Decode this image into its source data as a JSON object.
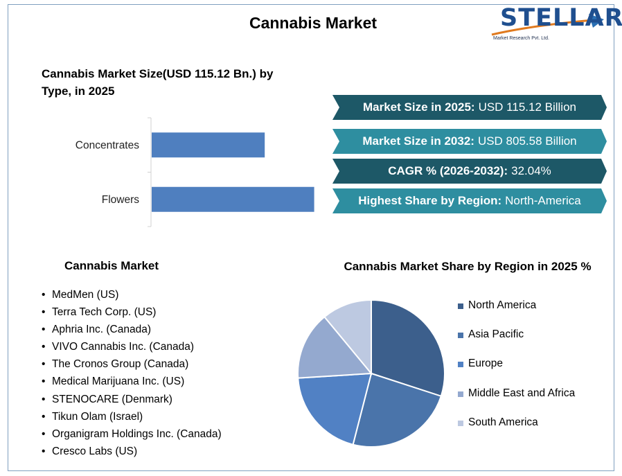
{
  "title": "Cannabis Market",
  "logo": {
    "name": "STELLAR",
    "tagline": "Market Research Pvt. Ltd."
  },
  "bar_section": {
    "title": "Cannabis Market Size(USD 115.12 Bn.) by Type, in 2025"
  },
  "banners": [
    {
      "label": "Market Size in 2025:",
      "value": "USD 115.12 Billion"
    },
    {
      "label": "Market Size in 2032:",
      "value": "USD 805.58 Billion"
    },
    {
      "label": "CAGR % (2026-2032):",
      "value": "32.04%"
    },
    {
      "label": "Highest Share by Region:",
      "value": "North-America"
    }
  ],
  "companies": {
    "title": "Cannabis Market",
    "items": [
      "MedMen (US)",
      "Terra Tech Corp. (US)",
      "Aphria Inc. (Canada)",
      "VIVO Cannabis Inc. (Canada)",
      "The Cronos Group (Canada)",
      "Medical Marijuana Inc. (US)",
      "STENOCARE (Denmark)",
      "Tikun Olam (Israel)",
      "Organigram Holdings Inc. (Canada)",
      "Cresco Labs (US)"
    ]
  },
  "colors": {
    "bar": "#4f7fbf",
    "banner_dark": "#1d5867",
    "banner_light": "#2e8ea0",
    "pie": [
      "#3c5f8c",
      "#4a74aa",
      "#5181c4",
      "#94a9cf",
      "#bdc9e1"
    ]
  },
  "chart_data": [
    {
      "type": "bar",
      "orientation": "horizontal",
      "title": "Cannabis Market Size(USD 115.12 Bn.) by Type, in 2025",
      "categories": [
        "Concentrates",
        "Flowers"
      ],
      "values": [
        48,
        69
      ],
      "xlim": [
        0,
        70
      ],
      "grid": false,
      "legend": "none"
    },
    {
      "type": "pie",
      "title": "Cannabis Market Share by Region in 2025 %",
      "labels": [
        "North America",
        "Asia Pacific",
        "Europe",
        "Middle East and Africa",
        "South America"
      ],
      "values": [
        30,
        24,
        20,
        15,
        11
      ],
      "legend": "right"
    }
  ]
}
